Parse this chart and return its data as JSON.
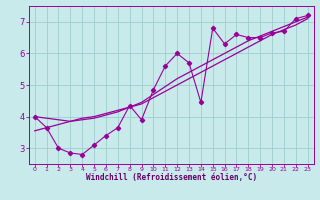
{
  "background_color": "#c8eaea",
  "grid_color": "#9ecece",
  "line_color": "#990099",
  "marker_color": "#990099",
  "xlabel": "Windchill (Refroidissement éolien,°C)",
  "xlabel_color": "#660066",
  "xlim": [
    -0.5,
    23.5
  ],
  "ylim": [
    2.5,
    7.5
  ],
  "yticks": [
    3,
    4,
    5,
    6,
    7
  ],
  "xticks": [
    0,
    1,
    2,
    3,
    4,
    5,
    6,
    7,
    8,
    9,
    10,
    11,
    12,
    13,
    14,
    15,
    16,
    17,
    18,
    19,
    20,
    21,
    22,
    23
  ],
  "main_x": [
    0,
    1,
    2,
    3,
    4,
    5,
    6,
    7,
    8,
    9,
    10,
    11,
    12,
    13,
    14,
    15,
    16,
    17,
    18,
    19,
    20,
    21,
    22,
    23
  ],
  "main_y": [
    4.0,
    3.65,
    3.0,
    2.85,
    2.8,
    3.1,
    3.4,
    3.65,
    4.35,
    3.9,
    4.85,
    5.6,
    6.0,
    5.7,
    4.45,
    6.8,
    6.3,
    6.6,
    6.5,
    6.5,
    6.65,
    6.7,
    7.1,
    7.2
  ],
  "trend1_x": [
    0,
    1,
    2,
    3,
    4,
    5,
    6,
    7,
    8,
    9,
    10,
    11,
    12,
    13,
    14,
    15,
    16,
    17,
    18,
    19,
    20,
    21,
    22,
    23
  ],
  "trend1_y": [
    3.55,
    3.65,
    3.75,
    3.85,
    3.95,
    4.0,
    4.1,
    4.2,
    4.3,
    4.4,
    4.6,
    4.8,
    5.0,
    5.2,
    5.4,
    5.6,
    5.8,
    6.0,
    6.2,
    6.4,
    6.6,
    6.75,
    6.9,
    7.1
  ],
  "trend2_x": [
    0,
    1,
    2,
    3,
    4,
    5,
    6,
    7,
    8,
    9,
    10,
    11,
    12,
    13,
    14,
    15,
    16,
    17,
    18,
    19,
    20,
    21,
    22,
    23
  ],
  "trend2_y": [
    4.0,
    3.95,
    3.9,
    3.85,
    3.9,
    3.95,
    4.05,
    4.15,
    4.3,
    4.45,
    4.7,
    4.95,
    5.2,
    5.4,
    5.6,
    5.8,
    6.0,
    6.2,
    6.4,
    6.55,
    6.7,
    6.85,
    7.0,
    7.15
  ]
}
